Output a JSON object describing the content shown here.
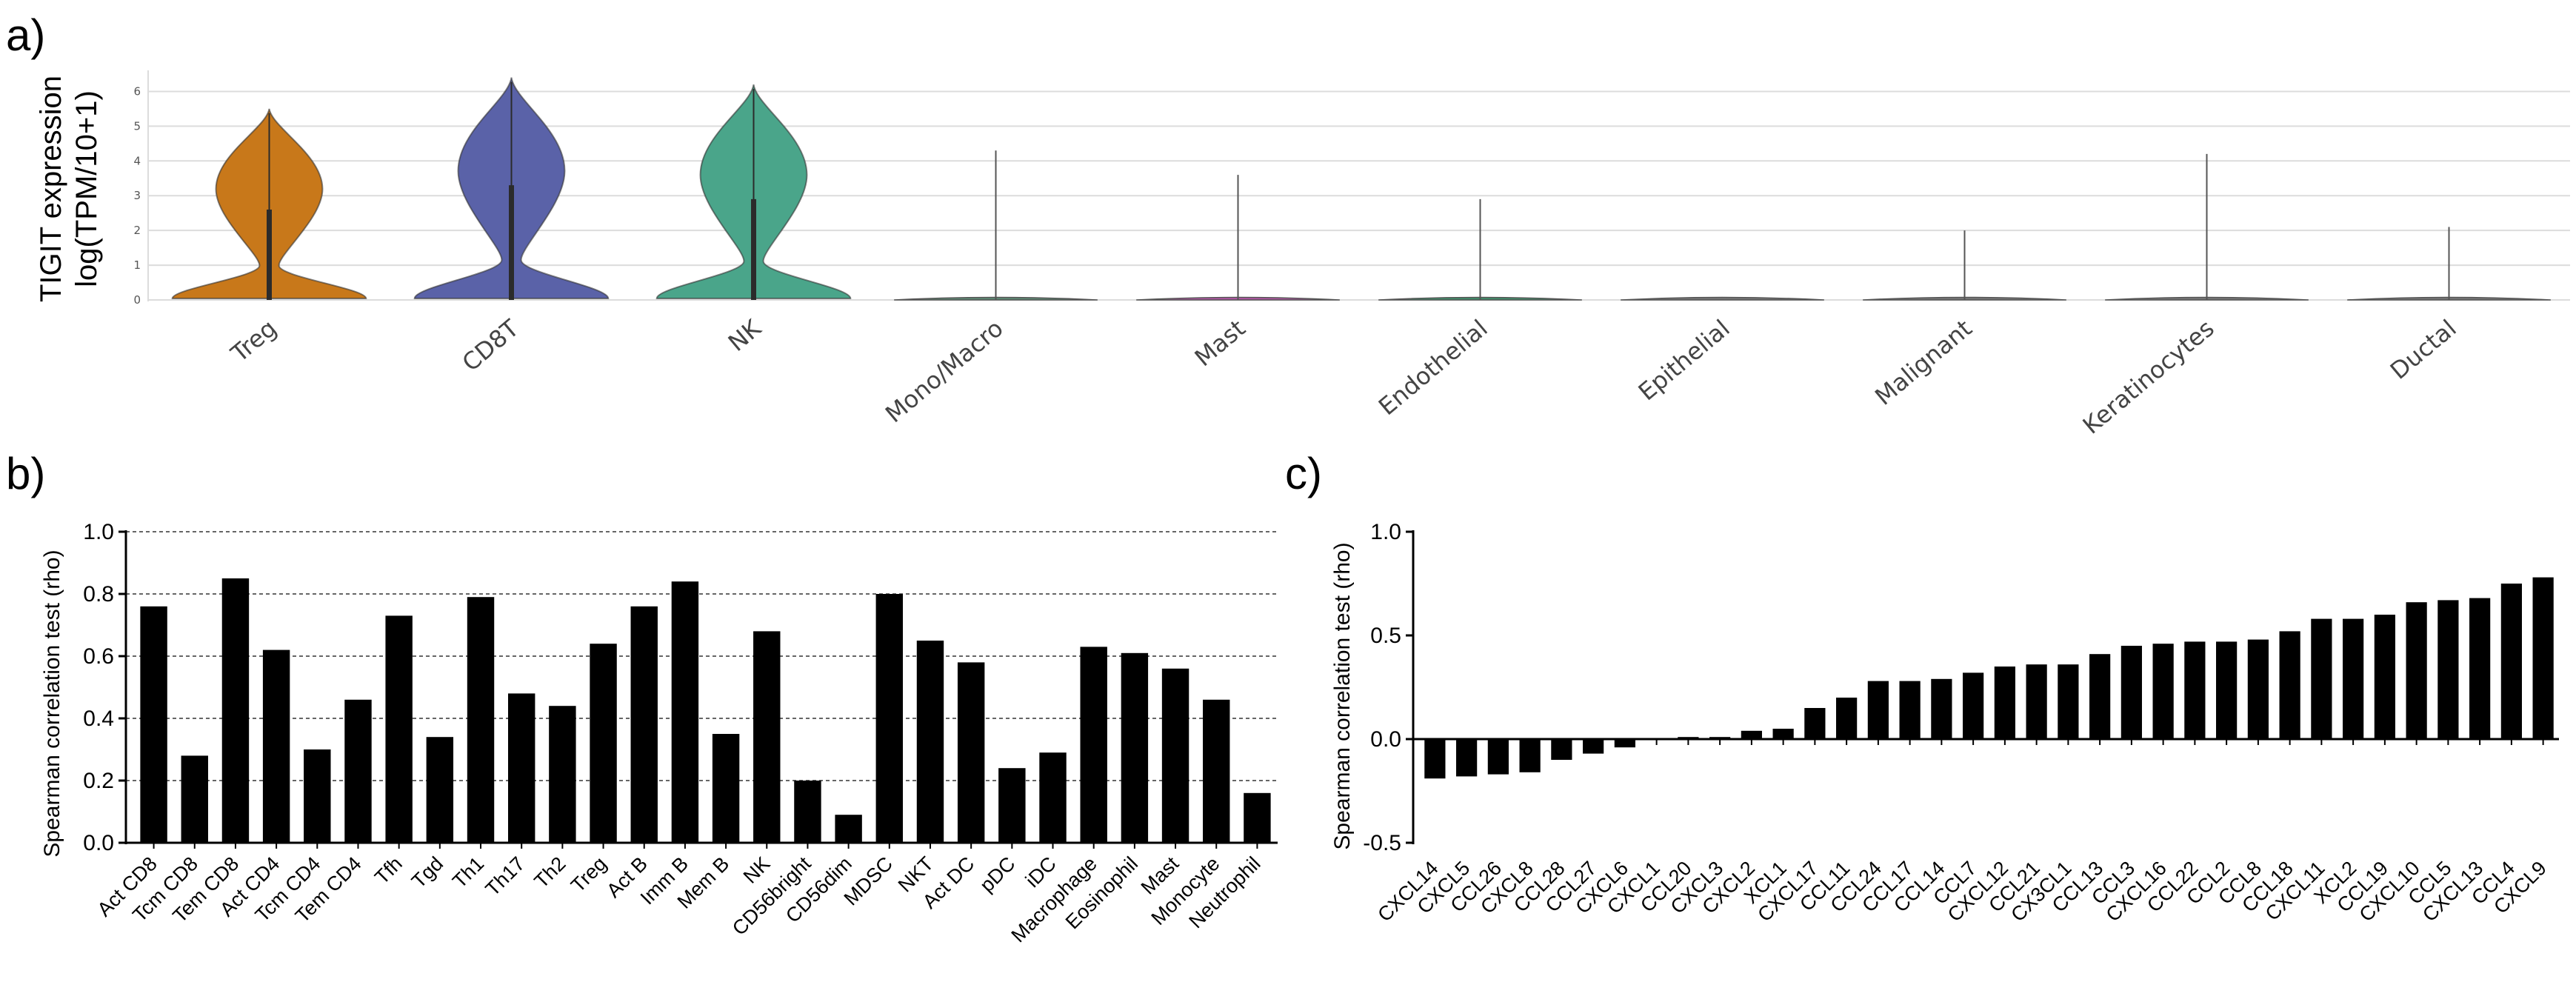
{
  "panels": {
    "a": {
      "label": "a)"
    },
    "b": {
      "label": "b)"
    },
    "c": {
      "label": "c)"
    }
  },
  "chart_data": [
    {
      "type": "violin",
      "title": "",
      "ylabel": "TIGIT expression log(TPM/10+1)",
      "ylabel_lines": [
        "TIGIT expression",
        "log(TPM/10+1)"
      ],
      "ylim": [
        0,
        6.5
      ],
      "yticks": [
        0,
        1,
        2,
        3,
        4,
        5,
        6
      ],
      "categories": [
        "Treg",
        "CD8T",
        "NK",
        "Mono/Macro",
        "Mast",
        "Endothelial",
        "Epithelial",
        "Malignant",
        "Keratinocytes",
        "Ductal"
      ],
      "colors": [
        "#c8781a",
        "#5a62a8",
        "#4aa58a",
        "#5d8a74",
        "#b455a6",
        "#3f8f6a",
        "#777777",
        "#777777",
        "#777777",
        "#777777"
      ],
      "max_values": [
        5.5,
        6.4,
        6.2,
        4.3,
        3.6,
        2.9,
        0.05,
        2.0,
        4.2,
        2.1
      ],
      "upper_quartile": [
        2.6,
        3.3,
        2.9,
        0,
        0,
        0,
        0,
        0,
        0,
        0
      ],
      "grid": true
    },
    {
      "type": "bar",
      "title": "",
      "ylabel": "Spearman correlation test (rho)",
      "ylim": [
        0,
        1.0
      ],
      "yticks": [
        0.0,
        0.2,
        0.4,
        0.6,
        0.8,
        1.0
      ],
      "ytick_labels": [
        "0.0",
        "0.2",
        "0.4",
        "0.6",
        "0.8",
        "1.0"
      ],
      "categories": [
        "Act CD8",
        "Tcm CD8",
        "Tem CD8",
        "Act CD4",
        "Tcm CD4",
        "Tem CD4",
        "Tfh",
        "Tgd",
        "Th1",
        "Th17",
        "Th2",
        "Treg",
        "Act B",
        "Imm B",
        "Mem B",
        "NK",
        "CD56bright",
        "CD56dim",
        "MDSC",
        "NKT",
        "Act DC",
        "pDC",
        "iDC",
        "Macrophage",
        "Eosinophil",
        "Mast",
        "Monocyte",
        "Neutrophil"
      ],
      "values": [
        0.76,
        0.28,
        0.85,
        0.62,
        0.3,
        0.46,
        0.73,
        0.34,
        0.79,
        0.48,
        0.44,
        0.64,
        0.76,
        0.84,
        0.35,
        0.68,
        0.2,
        0.09,
        0.8,
        0.65,
        0.58,
        0.24,
        0.29,
        0.63,
        0.61,
        0.56,
        0.46,
        0.16
      ],
      "grid": "dashed-horizontal"
    },
    {
      "type": "bar",
      "title": "",
      "ylabel": "Spearman correlation test (rho)",
      "ylim": [
        -0.5,
        1.0
      ],
      "yticks": [
        -0.5,
        0.0,
        0.5,
        1.0
      ],
      "ytick_labels": [
        "-0.5",
        "0.0",
        "0.5",
        "1.0"
      ],
      "categories": [
        "CXCL14",
        "CXCL5",
        "CCL26",
        "CXCL8",
        "CCL28",
        "CCL27",
        "CXCL6",
        "CXCL1",
        "CCL20",
        "CXCL3",
        "CXCL2",
        "XCL1",
        "CXCL17",
        "CCL11",
        "CCL24",
        "CCL17",
        "CCL14",
        "CCL7",
        "CXCL12",
        "CCL21",
        "CX3CL1",
        "CCL13",
        "CCL3",
        "CXCL16",
        "CCL22",
        "CCL2",
        "CCL8",
        "CCL18",
        "CXCL11",
        "XCL2",
        "CCL19",
        "CXCL10",
        "CCL5",
        "CXCL13",
        "CCL4",
        "CXCL9"
      ],
      "values": [
        -0.19,
        -0.18,
        -0.17,
        -0.16,
        -0.1,
        -0.07,
        -0.04,
        0.0,
        0.01,
        0.01,
        0.04,
        0.05,
        0.15,
        0.2,
        0.28,
        0.28,
        0.29,
        0.32,
        0.35,
        0.36,
        0.36,
        0.41,
        0.45,
        0.46,
        0.47,
        0.47,
        0.48,
        0.52,
        0.58,
        0.58,
        0.6,
        0.66,
        0.67,
        0.68,
        0.75,
        0.78
      ],
      "grid": false
    }
  ]
}
